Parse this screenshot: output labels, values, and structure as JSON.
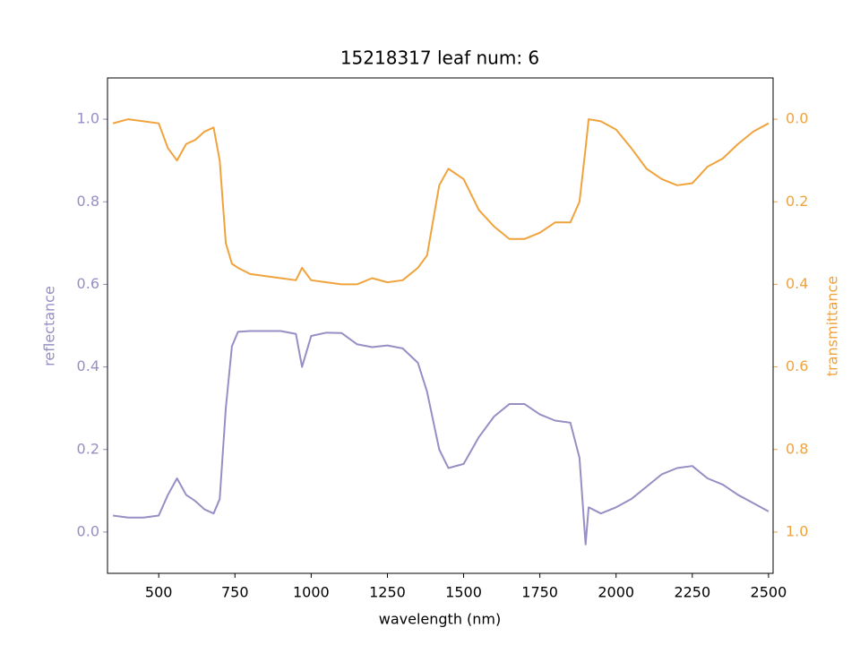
{
  "chart_data": {
    "type": "line",
    "title": "15218317 leaf num: 6",
    "x_label": "wavelength (nm)",
    "y_label": "reflectance",
    "y2_label": "transmittance",
    "x": [
      350,
      400,
      450,
      500,
      530,
      560,
      590,
      620,
      650,
      680,
      700,
      720,
      740,
      760,
      800,
      900,
      950,
      970,
      1000,
      1050,
      1100,
      1150,
      1200,
      1250,
      1300,
      1350,
      1380,
      1420,
      1450,
      1500,
      1550,
      1600,
      1650,
      1700,
      1750,
      1800,
      1850,
      1880,
      1900,
      1910,
      1950,
      2000,
      2050,
      2100,
      2150,
      2200,
      2250,
      2300,
      2350,
      2400,
      2450,
      2500
    ],
    "series": [
      {
        "name": "reflectance",
        "color": "#958fc4",
        "axis": "y",
        "values": [
          0.04,
          0.035,
          0.035,
          0.04,
          0.09,
          0.13,
          0.09,
          0.075,
          0.055,
          0.045,
          0.08,
          0.3,
          0.45,
          0.485,
          0.487,
          0.487,
          0.48,
          0.4,
          0.475,
          0.483,
          0.482,
          0.455,
          0.448,
          0.452,
          0.445,
          0.41,
          0.34,
          0.2,
          0.155,
          0.165,
          0.23,
          0.28,
          0.31,
          0.31,
          0.285,
          0.27,
          0.265,
          0.18,
          -0.03,
          0.06,
          0.045,
          0.06,
          0.08,
          0.11,
          0.14,
          0.155,
          0.16,
          0.13,
          0.115,
          0.09,
          0.07,
          0.05
        ]
      },
      {
        "name": "transmittance",
        "color": "#f0a33c",
        "axis": "y2",
        "values": [
          0.01,
          0.0,
          0.005,
          0.01,
          0.07,
          0.1,
          0.06,
          0.05,
          0.03,
          0.02,
          0.1,
          0.3,
          0.35,
          0.36,
          0.375,
          0.385,
          0.39,
          0.36,
          0.39,
          0.395,
          0.4,
          0.4,
          0.385,
          0.395,
          0.39,
          0.36,
          0.33,
          0.16,
          0.12,
          0.145,
          0.22,
          0.26,
          0.29,
          0.29,
          0.275,
          0.25,
          0.25,
          0.2,
          0.07,
          0.0,
          0.005,
          0.025,
          0.07,
          0.12,
          0.145,
          0.16,
          0.155,
          0.115,
          0.095,
          0.06,
          0.03,
          0.01
        ]
      }
    ],
    "xlim": [
      332,
      2515
    ],
    "xticks": [
      500,
      750,
      1000,
      1250,
      1500,
      1750,
      2000,
      2250,
      2500
    ],
    "ylim": [
      -0.1,
      1.1
    ],
    "yticks": [
      {
        "value": 0,
        "label": "0.0"
      },
      0.2,
      0.4,
      0.6,
      0.8,
      {
        "value": 1,
        "label": "1.0"
      }
    ],
    "y2lim": [
      1.1,
      -0.1
    ],
    "y2ticks": [
      {
        "value": 0,
        "label": "0.0"
      },
      0.2,
      0.4,
      0.6,
      0.8,
      {
        "value": 1,
        "label": "1.0"
      }
    ]
  }
}
